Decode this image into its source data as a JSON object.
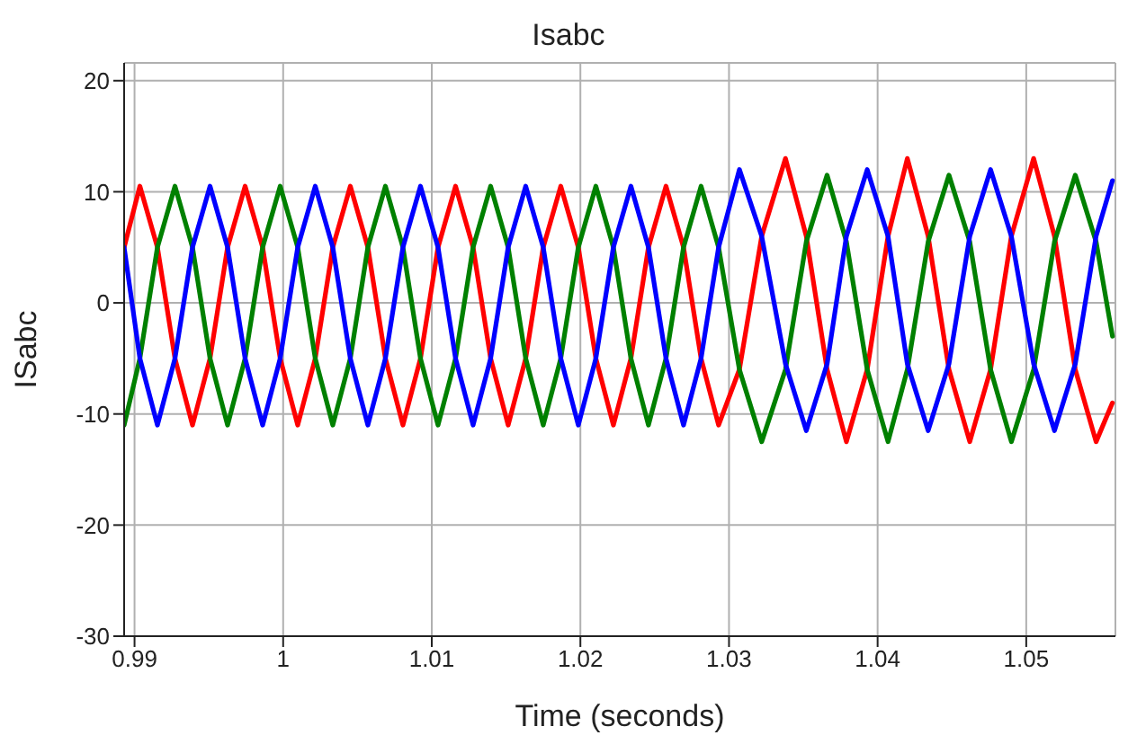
{
  "chart_data": {
    "type": "line",
    "title": "Isabc",
    "xlabel": "Time (seconds)",
    "ylabel": "ISabc",
    "x": [
      0.9893,
      0.99036,
      0.99154,
      0.99272,
      0.9939,
      0.99508,
      0.99626,
      0.99744,
      0.99862,
      0.9998,
      1.00098,
      1.00216,
      1.00334,
      1.00452,
      1.0057,
      1.00688,
      1.00806,
      1.00924,
      1.01042,
      1.0116,
      1.01278,
      1.01396,
      1.01514,
      1.01632,
      1.0175,
      1.01868,
      1.01986,
      1.02104,
      1.02222,
      1.0234,
      1.02458,
      1.02576,
      1.02694,
      1.02812,
      1.0293,
      1.0307,
      1.0322,
      1.0338,
      1.0352,
      1.0366,
      1.0379,
      1.0393,
      1.0407,
      1.042,
      1.0434,
      1.0448,
      1.0462,
      1.0476,
      1.049,
      1.0505,
      1.0519,
      1.0533,
      1.0547,
      1.0558
    ],
    "series": [
      {
        "color": "#ff0000",
        "values": [
          5,
          10.5,
          5,
          -5,
          -11,
          -5,
          5,
          10.5,
          5,
          -5,
          -11,
          -5,
          5,
          10.5,
          5,
          -5,
          -11,
          -5,
          5,
          10.5,
          5,
          -5,
          -11,
          -5,
          5,
          10.5,
          5,
          -5,
          -11,
          -5,
          5,
          10.5,
          5,
          -5,
          -11,
          -6,
          6,
          13,
          6,
          -6,
          -12.5,
          -6,
          6,
          13,
          6,
          -6,
          -12.5,
          -6,
          6,
          13,
          6,
          -6,
          -12.5,
          -9
        ]
      },
      {
        "color": "#008000",
        "values": [
          -11,
          -5,
          5,
          10.5,
          5,
          -5,
          -11,
          -5,
          5,
          10.5,
          5,
          -5,
          -11,
          -5,
          5,
          10.5,
          5,
          -5,
          -11,
          -5,
          5,
          10.5,
          5,
          -5,
          -11,
          -5,
          5,
          10.5,
          5,
          -5,
          -11,
          -5,
          5,
          10.5,
          5,
          -6,
          -12.5,
          -6,
          5.5,
          11.5,
          5.5,
          -6,
          -12.5,
          -6,
          5.5,
          11.5,
          5.5,
          -6,
          -12.5,
          -6,
          5.5,
          11.5,
          5.5,
          -3
        ]
      },
      {
        "color": "#0000ff",
        "values": [
          5,
          -5,
          -11,
          -5,
          5,
          10.5,
          5,
          -5,
          -11,
          -5,
          5,
          10.5,
          5,
          -5,
          -11,
          -5,
          5,
          10.5,
          5,
          -5,
          -11,
          -5,
          5,
          10.5,
          5,
          -5,
          -11,
          -5,
          5,
          10.5,
          5,
          -5,
          -11,
          -5,
          5,
          12,
          6,
          -5.5,
          -11.5,
          -5.5,
          6,
          12,
          6,
          -5.5,
          -11.5,
          -5.5,
          6,
          12,
          6,
          -5.5,
          -11.5,
          -5.5,
          6,
          11
        ]
      }
    ],
    "xlim": [
      0.9893,
      1.056
    ],
    "xticks": [
      0.99,
      1,
      1.01,
      1.02,
      1.03,
      1.04,
      1.05
    ],
    "ylim": [
      -30,
      21.6
    ],
    "yticks": [
      -30,
      -20,
      -10,
      0,
      10,
      20
    ],
    "grid": true
  }
}
